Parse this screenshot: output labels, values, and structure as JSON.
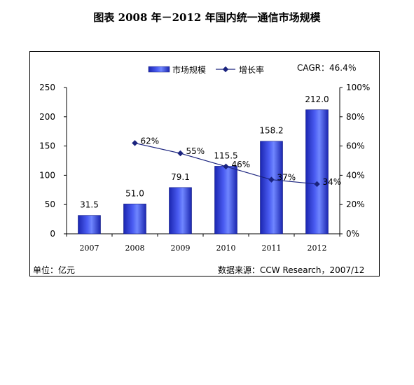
{
  "title": "图表  2008 年－2012 年国内统一通信市场规模",
  "footer": {
    "unit": "单位：亿元",
    "source": "数据来源：CCW Research，2007/12"
  },
  "annotation": "CAGR：46.4％",
  "colors": {
    "bar": "#2433cc",
    "bar_light": "#6f86ff",
    "line": "#1a237e"
  },
  "chart_data": {
    "type": "bar",
    "categories": [
      "2007",
      "2008",
      "2009",
      "2010",
      "2011",
      "2012"
    ],
    "series": [
      {
        "name": "市场规模",
        "type": "bar",
        "axis": "left",
        "values": [
          31.5,
          51.0,
          79.1,
          115.5,
          158.2,
          212.0
        ],
        "labels": [
          "31.5",
          "51.0",
          "79.1",
          "115.5",
          "158.2",
          "212.0"
        ]
      },
      {
        "name": "增长率",
        "type": "line",
        "axis": "right",
        "values": [
          null,
          62,
          55,
          46,
          37,
          34
        ],
        "labels": [
          "",
          "62%",
          "55%",
          "46%",
          "37%",
          "34%"
        ]
      }
    ],
    "y_left": {
      "ticks": [
        "0",
        "50",
        "100",
        "150",
        "200",
        "250"
      ],
      "lim": [
        0,
        250
      ]
    },
    "y_right": {
      "ticks": [
        "0%",
        "20%",
        "40%",
        "60%",
        "80%",
        "100%"
      ],
      "lim": [
        0,
        100
      ]
    },
    "legend_position": "top",
    "grid": false
  }
}
